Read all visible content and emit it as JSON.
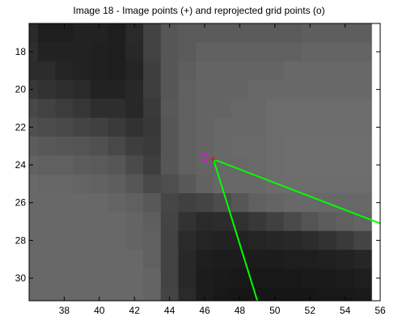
{
  "chart_data": {
    "type": "scatter",
    "title": "Image 18 - Image points (+) and reprojected grid points (o)",
    "xlabel": "",
    "ylabel": "",
    "xlim": [
      36.0,
      56.0
    ],
    "ylim": [
      31.2,
      16.5
    ],
    "y_axis_direction": "down",
    "grid": false,
    "x_ticks": [
      38,
      40,
      42,
      44,
      46,
      48,
      50,
      52,
      54,
      56
    ],
    "y_ticks": [
      18,
      20,
      22,
      24,
      26,
      28,
      30
    ],
    "image_grid_step": 1,
    "image_grid_start": [
      36,
      16
    ],
    "image_intensity_rows": [
      [
        38,
        36,
        36,
        38,
        38,
        36,
        42,
        62,
        82,
        82,
        82,
        82,
        86,
        86,
        86,
        86,
        90,
        90,
        90,
        90
      ],
      [
        42,
        30,
        30,
        34,
        34,
        30,
        42,
        66,
        86,
        90,
        90,
        90,
        90,
        90,
        90,
        90,
        94,
        94,
        94,
        94
      ],
      [
        46,
        34,
        34,
        34,
        32,
        30,
        40,
        66,
        86,
        90,
        96,
        96,
        96,
        96,
        96,
        96,
        100,
        100,
        100,
        100
      ],
      [
        44,
        44,
        36,
        34,
        32,
        30,
        36,
        62,
        86,
        94,
        100,
        100,
        100,
        100,
        100,
        104,
        104,
        104,
        104,
        104
      ],
      [
        56,
        50,
        46,
        42,
        34,
        34,
        40,
        62,
        86,
        96,
        100,
        100,
        100,
        104,
        104,
        104,
        104,
        104,
        104,
        104
      ],
      [
        72,
        66,
        60,
        54,
        46,
        46,
        40,
        58,
        88,
        96,
        100,
        100,
        104,
        104,
        108,
        108,
        108,
        108,
        108,
        108
      ],
      [
        80,
        76,
        72,
        68,
        64,
        58,
        50,
        56,
        86,
        96,
        100,
        104,
        104,
        104,
        108,
        108,
        108,
        108,
        108,
        108
      ],
      [
        92,
        88,
        86,
        84,
        80,
        72,
        62,
        58,
        86,
        96,
        100,
        104,
        106,
        106,
        108,
        110,
        110,
        110,
        110,
        110
      ],
      [
        98,
        96,
        96,
        92,
        90,
        86,
        74,
        62,
        86,
        96,
        100,
        104,
        104,
        106,
        108,
        110,
        110,
        110,
        110,
        110
      ],
      [
        104,
        102,
        102,
        100,
        98,
        94,
        86,
        72,
        78,
        88,
        98,
        104,
        104,
        104,
        108,
        108,
        108,
        108,
        108,
        108
      ],
      [
        104,
        104,
        104,
        104,
        104,
        100,
        96,
        88,
        70,
        64,
        68,
        76,
        86,
        96,
        100,
        104,
        104,
        104,
        104,
        104
      ],
      [
        104,
        104,
        104,
        104,
        104,
        104,
        100,
        94,
        68,
        50,
        42,
        44,
        48,
        56,
        64,
        74,
        84,
        92,
        96,
        100
      ],
      [
        104,
        104,
        104,
        104,
        104,
        104,
        100,
        96,
        66,
        42,
        36,
        34,
        34,
        36,
        38,
        40,
        44,
        50,
        58,
        68
      ],
      [
        104,
        104,
        104,
        104,
        104,
        104,
        104,
        96,
        66,
        40,
        30,
        28,
        28,
        28,
        28,
        30,
        30,
        32,
        34,
        38
      ],
      [
        104,
        104,
        104,
        104,
        104,
        104,
        104,
        100,
        66,
        40,
        28,
        26,
        24,
        24,
        24,
        24,
        26,
        26,
        28,
        30
      ],
      [
        104,
        104,
        104,
        104,
        104,
        104,
        104,
        100,
        68,
        42,
        28,
        24,
        22,
        22,
        22,
        22,
        22,
        24,
        24,
        26
      ]
    ],
    "image_points": [
      {
        "x": 46.5,
        "y": 23.7
      }
    ],
    "reprojected_points": [
      {
        "x": 46.0,
        "y": 23.6
      }
    ],
    "edge_lines": [
      {
        "from": [
          46.5,
          23.7
        ],
        "to": [
          56.0,
          27.1
        ]
      },
      {
        "from": [
          46.5,
          23.7
        ],
        "to": [
          49.0,
          31.2
        ]
      }
    ],
    "colors": {
      "image_point_marker": "#ff0000",
      "reprojected_marker": "#ff00ff",
      "edge_line": "#00ff00",
      "axes": "#000000"
    }
  }
}
